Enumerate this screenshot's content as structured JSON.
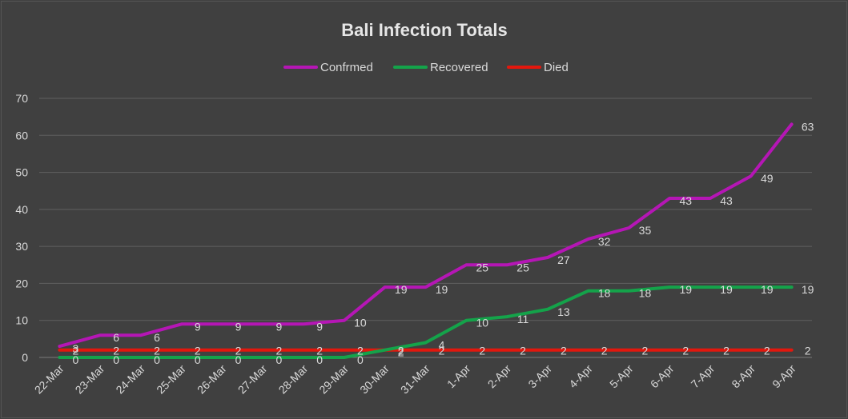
{
  "chart_data": {
    "type": "line",
    "title": "Bali Infection Totals",
    "xlabel": "",
    "ylabel": "",
    "categories": [
      "22-Mar",
      "23-Mar",
      "24-Mar",
      "25-Mar",
      "26-Mar",
      "27-Mar",
      "28-Mar",
      "29-Mar",
      "30-Mar",
      "31-Mar",
      "1-Apr",
      "2-Apr",
      "3-Apr",
      "4-Apr",
      "5-Apr",
      "6-Apr",
      "7-Apr",
      "8-Apr",
      "9-Apr"
    ],
    "series": [
      {
        "name": "Confrmed",
        "color": "#b516b5",
        "values": [
          3,
          6,
          6,
          9,
          9,
          9,
          9,
          10,
          19,
          19,
          25,
          25,
          27,
          32,
          35,
          43,
          43,
          49,
          63
        ]
      },
      {
        "name": "Recovered",
        "color": "#14a34a",
        "values": [
          0,
          0,
          0,
          0,
          0,
          0,
          0,
          0,
          2,
          4,
          10,
          11,
          13,
          18,
          18,
          19,
          19,
          19,
          19
        ]
      },
      {
        "name": "Died",
        "color": "#e3170d",
        "values": [
          2,
          2,
          2,
          2,
          2,
          2,
          2,
          2,
          2,
          2,
          2,
          2,
          2,
          2,
          2,
          2,
          2,
          2,
          2
        ]
      }
    ],
    "ylim": [
      0,
      70
    ],
    "yticks": [
      0,
      10,
      20,
      30,
      40,
      50,
      60,
      70
    ],
    "grid": true,
    "legend": "top-center",
    "data_labels": true
  }
}
